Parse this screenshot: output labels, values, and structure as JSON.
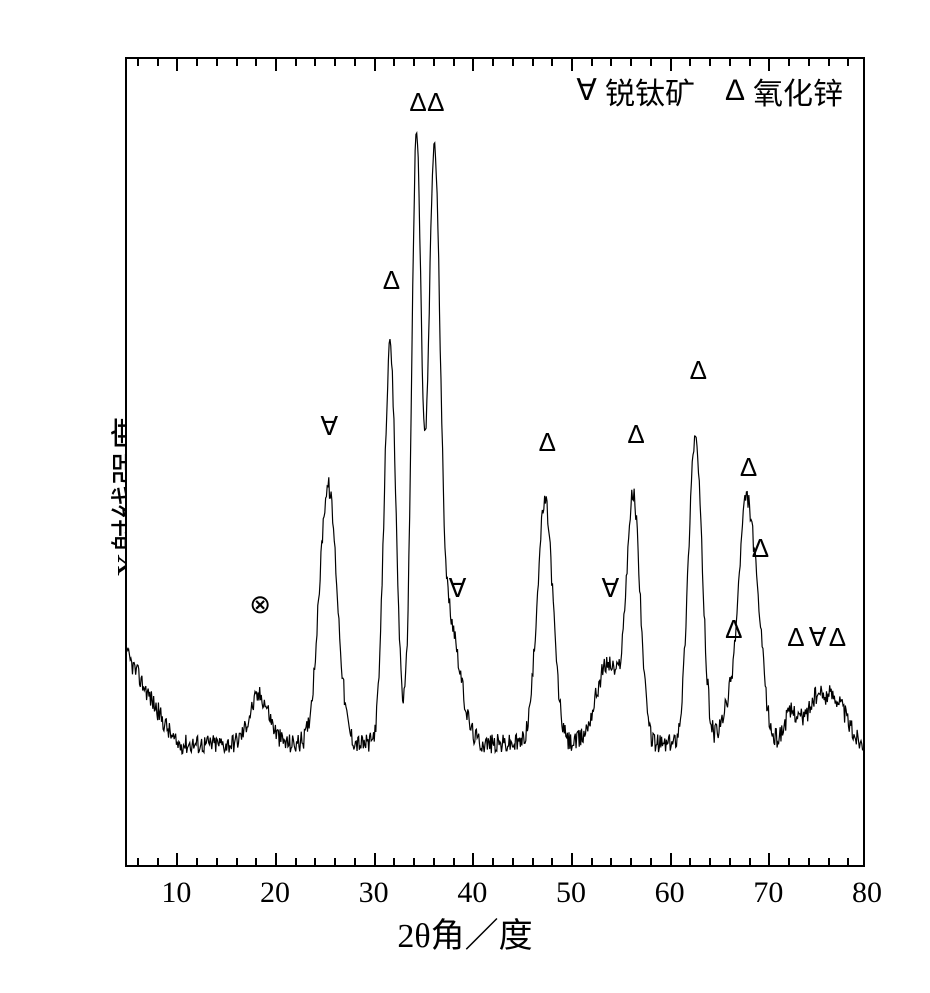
{
  "chart": {
    "type": "line",
    "title": "",
    "xlabel": "2θ角／度",
    "ylabel": "X射线强度",
    "label_fontsize": 34,
    "tick_fontsize": 30,
    "marker_fontsize": 26,
    "xlim": [
      5,
      80
    ],
    "ylim": [
      0,
      100
    ],
    "xtick_major_step": 10,
    "xtick_minor_step": 2,
    "xtick_labels": [
      "10",
      "20",
      "30",
      "40",
      "50",
      "60",
      "70",
      "80"
    ],
    "xtick_positions": [
      10,
      20,
      30,
      40,
      50,
      60,
      70,
      80
    ],
    "background_color": "#ffffff",
    "line_color": "#000000",
    "border_color": "#000000",
    "line_width": 1.2,
    "legend": {
      "position": "top-right",
      "items": [
        {
          "symbol": "∀",
          "label": "锐钛矿"
        },
        {
          "symbol": "Δ",
          "label": "氧化锌"
        }
      ]
    },
    "peak_markers": [
      {
        "x": 18.5,
        "y": 31,
        "symbol": "⊗"
      },
      {
        "x": 25.5,
        "y": 53,
        "symbol": "∀"
      },
      {
        "x": 31.8,
        "y": 71,
        "symbol": "Δ"
      },
      {
        "x": 34.5,
        "y": 93,
        "symbol": "Δ"
      },
      {
        "x": 36.3,
        "y": 93,
        "symbol": "Δ"
      },
      {
        "x": 38.5,
        "y": 33,
        "symbol": "∀"
      },
      {
        "x": 47.6,
        "y": 51,
        "symbol": "Δ"
      },
      {
        "x": 54.0,
        "y": 33,
        "symbol": "∀"
      },
      {
        "x": 56.6,
        "y": 52,
        "symbol": "Δ"
      },
      {
        "x": 62.9,
        "y": 60,
        "symbol": "Δ"
      },
      {
        "x": 66.5,
        "y": 28,
        "symbol": "Δ"
      },
      {
        "x": 68.0,
        "y": 48,
        "symbol": "Δ"
      },
      {
        "x": 69.2,
        "y": 38,
        "symbol": "Δ"
      },
      {
        "x": 72.8,
        "y": 27,
        "symbol": "Δ"
      },
      {
        "x": 75.0,
        "y": 27,
        "symbol": "∀"
      },
      {
        "x": 77.0,
        "y": 27,
        "symbol": "Δ"
      }
    ],
    "baseline_y": 15,
    "noise_amplitude": 2.5,
    "noise_start_y": 26,
    "peaks": [
      {
        "x": 18.5,
        "height": 6,
        "width": 1.0
      },
      {
        "x": 25.5,
        "height": 32,
        "width": 0.9
      },
      {
        "x": 31.8,
        "height": 49,
        "width": 0.6
      },
      {
        "x": 34.5,
        "height": 75,
        "width": 0.5
      },
      {
        "x": 36.3,
        "height": 72,
        "width": 0.6
      },
      {
        "x": 37.8,
        "height": 10,
        "width": 0.8
      },
      {
        "x": 38.5,
        "height": 6,
        "width": 1.0
      },
      {
        "x": 47.6,
        "height": 30,
        "width": 0.8
      },
      {
        "x": 54.0,
        "height": 10,
        "width": 1.2
      },
      {
        "x": 56.6,
        "height": 30,
        "width": 0.7
      },
      {
        "x": 62.9,
        "height": 38,
        "width": 0.7
      },
      {
        "x": 66.5,
        "height": 5,
        "width": 0.8
      },
      {
        "x": 68.0,
        "height": 26,
        "width": 0.7
      },
      {
        "x": 69.2,
        "height": 14,
        "width": 0.7
      },
      {
        "x": 72.8,
        "height": 4,
        "width": 0.8
      },
      {
        "x": 75.0,
        "height": 4,
        "width": 0.8
      },
      {
        "x": 77.0,
        "height": 6,
        "width": 1.2
      }
    ]
  }
}
